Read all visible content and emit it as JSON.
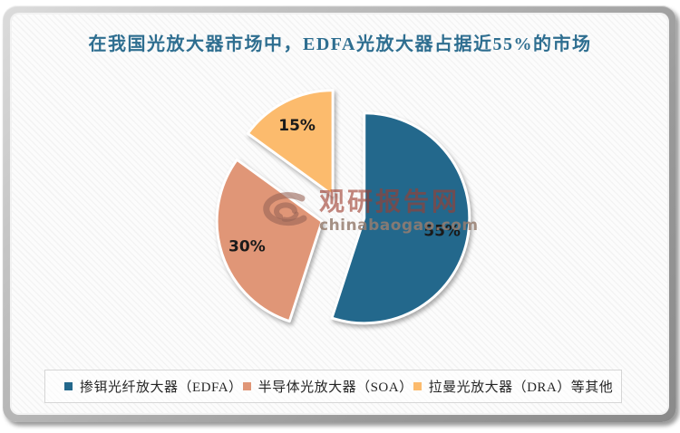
{
  "chart_data": {
    "type": "pie",
    "title": "在我国光放大器市场中，EDFA光放大器占据近55%的市场",
    "title_color": "#2E6E90",
    "labels": [
      "掺铒光纤放大器（EDFA）",
      "半导体光放大器（SOA）",
      "拉曼光放大器（DRA）等其他"
    ],
    "values": [
      55,
      30,
      15
    ],
    "value_labels": [
      "55%",
      "30%",
      "15%"
    ],
    "colors": [
      "#23688C",
      "#E09677",
      "#FCBB6D"
    ],
    "start_angle_deg": 0,
    "direction": "clockwise",
    "exploded": true,
    "legend_position": "bottom",
    "label_text_color": "#1a1a1a"
  },
  "watermark": {
    "icon": "swirl-logo",
    "site_name": "观研报告网",
    "site_url": "chinabaogao.com",
    "name_color": "rgba(158,62,46,0.62)",
    "url_color": "rgba(150,126,112,0.85)"
  },
  "window": {
    "frame_color": "#9a9a9a",
    "background": "#fcfcfc"
  }
}
